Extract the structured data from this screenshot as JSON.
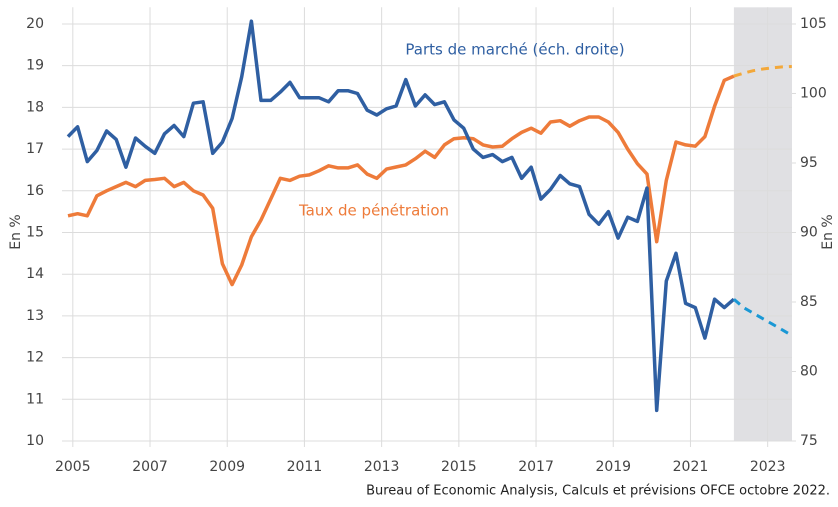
{
  "chart_data": {
    "type": "line",
    "annotations": [],
    "y_label": "En %",
    "y2_label": "En %",
    "source": "Bureau of Economic Analysis, Calculs et prévisions OFCE octobre 2022.",
    "x": [
      2004.875,
      2005.125,
      2005.375,
      2005.625,
      2005.875,
      2006.125,
      2006.375,
      2006.625,
      2006.875,
      2007.125,
      2007.375,
      2007.625,
      2007.875,
      2008.125,
      2008.375,
      2008.625,
      2008.875,
      2009.125,
      2009.375,
      2009.625,
      2009.875,
      2010.125,
      2010.375,
      2010.625,
      2010.875,
      2011.125,
      2011.375,
      2011.625,
      2011.875,
      2012.125,
      2012.375,
      2012.625,
      2012.875,
      2013.125,
      2013.375,
      2013.625,
      2013.875,
      2014.125,
      2014.375,
      2014.625,
      2014.875,
      2015.125,
      2015.375,
      2015.625,
      2015.875,
      2016.125,
      2016.375,
      2016.625,
      2016.875,
      2017.125,
      2017.375,
      2017.625,
      2017.875,
      2018.125,
      2018.375,
      2018.625,
      2018.875,
      2019.125,
      2019.375,
      2019.625,
      2019.875,
      2020.125,
      2020.375,
      2020.625,
      2020.875,
      2021.125,
      2021.375,
      2021.625,
      2021.875,
      2022.125,
      2022.375,
      2022.625,
      2022.875,
      2023.125,
      2023.375,
      2023.625
    ],
    "series": [
      {
        "name": "Taux de pénétration",
        "color": "#ee7b3a",
        "dashed": false,
        "values": [
          15.4,
          15.45,
          15.4,
          15.88,
          16.0,
          16.1,
          16.2,
          16.1,
          16.25,
          16.27,
          16.3,
          16.1,
          16.2,
          16.0,
          15.9,
          15.58,
          14.25,
          13.75,
          14.22,
          14.9,
          15.3,
          15.8,
          16.3,
          16.25,
          16.35,
          16.38,
          16.48,
          16.6,
          16.55,
          16.55,
          16.62,
          16.4,
          16.3,
          16.52,
          16.57,
          16.62,
          16.77,
          16.95,
          16.8,
          17.1,
          17.25,
          17.27,
          17.25,
          17.1,
          17.05,
          17.07,
          17.25,
          17.4,
          17.5,
          17.38,
          17.65,
          17.68,
          17.55,
          17.68,
          17.77,
          17.77,
          17.65,
          17.4,
          17.0,
          16.65,
          16.4,
          14.78,
          16.25,
          17.17,
          17.1,
          17.07,
          17.3,
          18.03,
          18.65,
          18.75,
          null,
          null,
          null,
          null,
          null,
          null
        ]
      },
      {
        "color": "#f3a83a",
        "dashed": true,
        "values": [
          null,
          null,
          null,
          null,
          null,
          null,
          null,
          null,
          null,
          null,
          null,
          null,
          null,
          null,
          null,
          null,
          null,
          null,
          null,
          null,
          null,
          null,
          null,
          null,
          null,
          null,
          null,
          null,
          null,
          null,
          null,
          null,
          null,
          null,
          null,
          null,
          null,
          null,
          null,
          null,
          null,
          null,
          null,
          null,
          null,
          null,
          null,
          null,
          null,
          null,
          null,
          null,
          null,
          null,
          null,
          null,
          null,
          null,
          null,
          null,
          null,
          null,
          null,
          null,
          null,
          null,
          null,
          null,
          null,
          18.75,
          18.82,
          18.88,
          18.92,
          18.95,
          18.97,
          18.98
        ]
      },
      {
        "name": "Parts de marché (éch. droite)",
        "color": "#2f5fa2",
        "dashed": false,
        "axis": "y2",
        "values": [
          96.9,
          97.6,
          95.1,
          95.9,
          97.3,
          96.7,
          94.7,
          96.8,
          96.2,
          95.7,
          97.1,
          97.7,
          96.9,
          99.3,
          99.4,
          95.7,
          96.5,
          98.2,
          101.2,
          105.2,
          99.5,
          99.5,
          100.1,
          100.8,
          99.7,
          99.7,
          99.7,
          99.4,
          100.2,
          100.2,
          100.0,
          98.8,
          98.45,
          98.9,
          99.1,
          101.0,
          99.1,
          99.9,
          99.2,
          99.4,
          98.1,
          97.5,
          96.0,
          95.4,
          95.6,
          95.1,
          95.4,
          93.9,
          94.7,
          92.4,
          93.1,
          94.1,
          93.5,
          93.3,
          91.3,
          90.6,
          91.5,
          89.6,
          91.1,
          90.8,
          93.2,
          77.2,
          86.5,
          88.5,
          84.9,
          84.6,
          82.4,
          85.2,
          84.6,
          85.2,
          null,
          null,
          null,
          null,
          null,
          null
        ]
      },
      {
        "color": "#1a98d5",
        "dashed": true,
        "axis": "y2",
        "values": [
          null,
          null,
          null,
          null,
          null,
          null,
          null,
          null,
          null,
          null,
          null,
          null,
          null,
          null,
          null,
          null,
          null,
          null,
          null,
          null,
          null,
          null,
          null,
          null,
          null,
          null,
          null,
          null,
          null,
          null,
          null,
          null,
          null,
          null,
          null,
          null,
          null,
          null,
          null,
          null,
          null,
          null,
          null,
          null,
          null,
          null,
          null,
          null,
          null,
          null,
          null,
          null,
          null,
          null,
          null,
          null,
          null,
          null,
          null,
          null,
          null,
          null,
          null,
          null,
          null,
          null,
          null,
          null,
          null,
          85.2,
          84.6,
          84.2,
          83.8,
          83.4,
          83.0,
          82.6
        ]
      }
    ],
    "shaded_region": [
      2022.125,
      2023.63
    ],
    "shade_color": "#e0e0e3",
    "xlim": [
      2004.72,
      2023.63
    ],
    "xticks": [
      2005,
      2007,
      2009,
      2011,
      2013,
      2015,
      2017,
      2019,
      2021,
      2023
    ],
    "ylim": [
      10,
      20.4
    ],
    "yticks": [
      10,
      11,
      12,
      13,
      14,
      15,
      16,
      17,
      18,
      19,
      20
    ],
    "y2lim": [
      75,
      106.2
    ],
    "y2ticks": [
      75,
      80,
      85,
      90,
      95,
      100,
      105
    ],
    "grid": true
  }
}
